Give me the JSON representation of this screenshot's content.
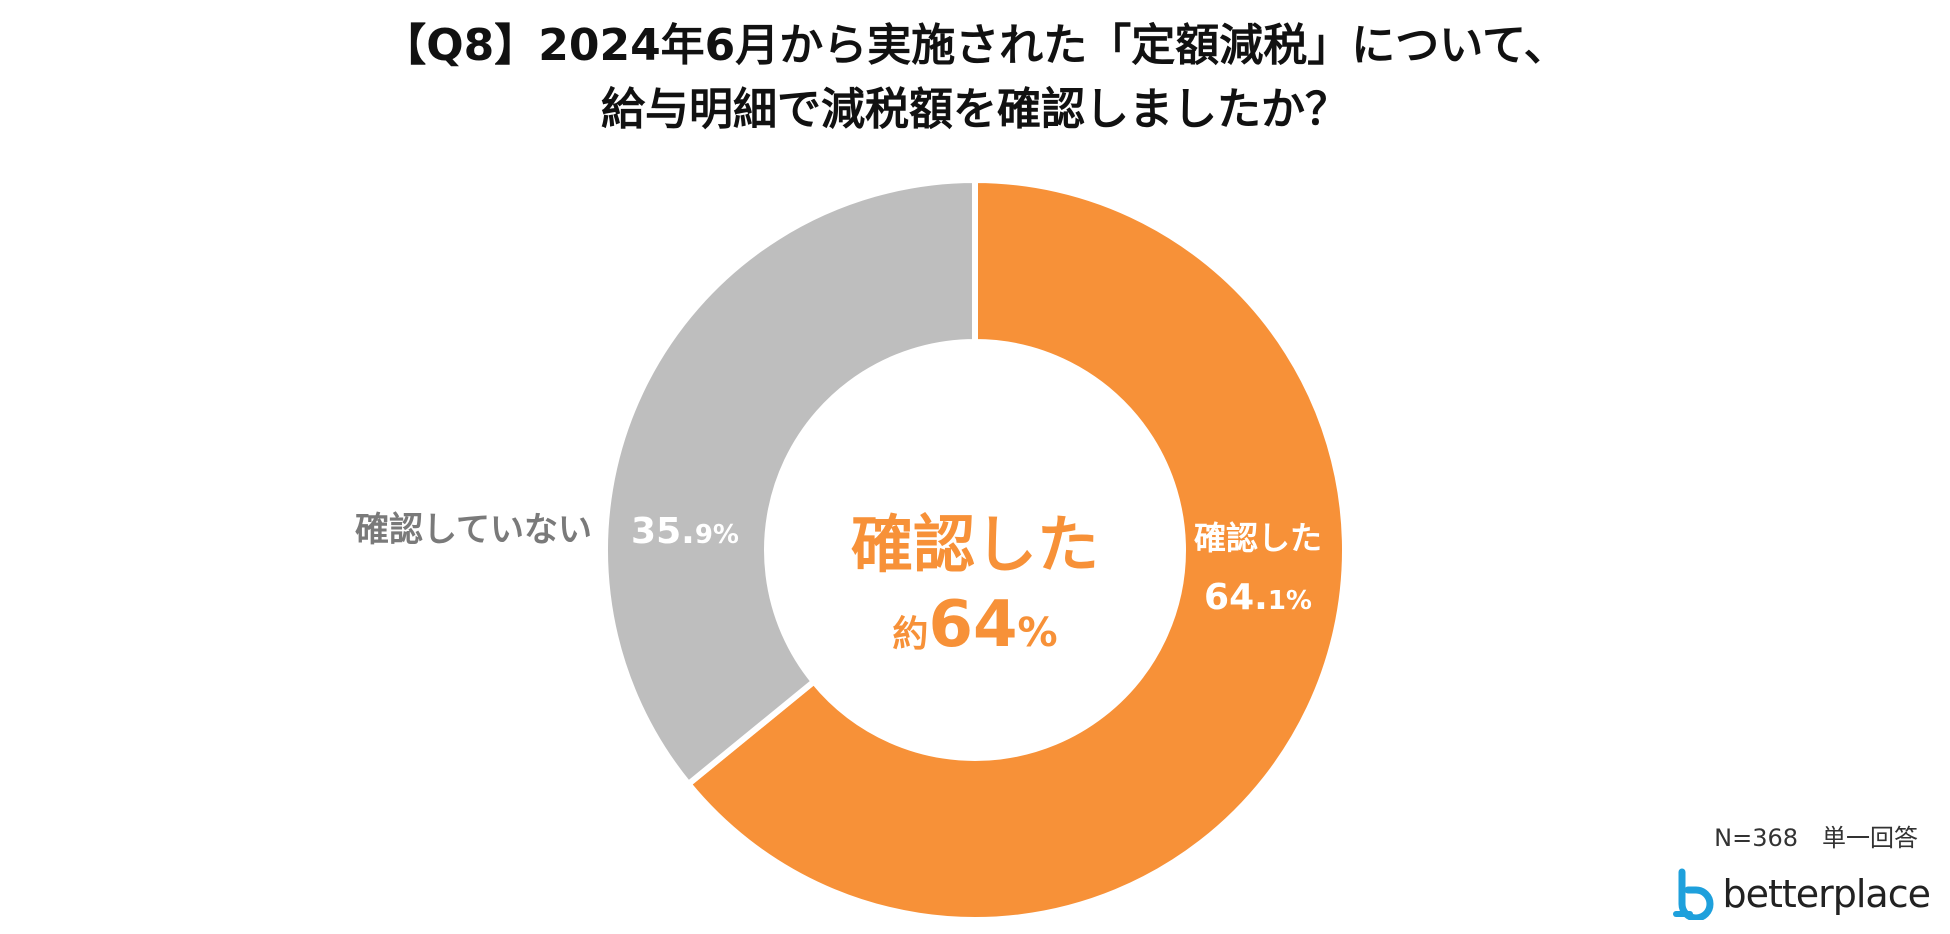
{
  "title_lines": [
    "【Q8】2024年6月から実施された「定額減税」について、",
    "給与明細で減税額を確認しましたか？"
  ],
  "chart_data": {
    "type": "pie",
    "categories": [
      "確認した",
      "確認していない"
    ],
    "values": [
      64.1,
      35.9
    ],
    "value_labels": [
      [
        "64.",
        "1%"
      ],
      [
        "35.",
        "9%"
      ]
    ],
    "colors": [
      "#F79138",
      "#BEBEBE"
    ],
    "label_colors": [
      "#ffffff",
      "#7A7A7A"
    ],
    "center": {
      "line1": "確認した",
      "prefix": "約",
      "number": "64",
      "unit": "%",
      "color": "#F79138"
    }
  },
  "note": "N=368　単一回答",
  "logo": {
    "text": "betterplace",
    "icon": "betterplace-logo-icon",
    "color": "#1EA0DC"
  }
}
